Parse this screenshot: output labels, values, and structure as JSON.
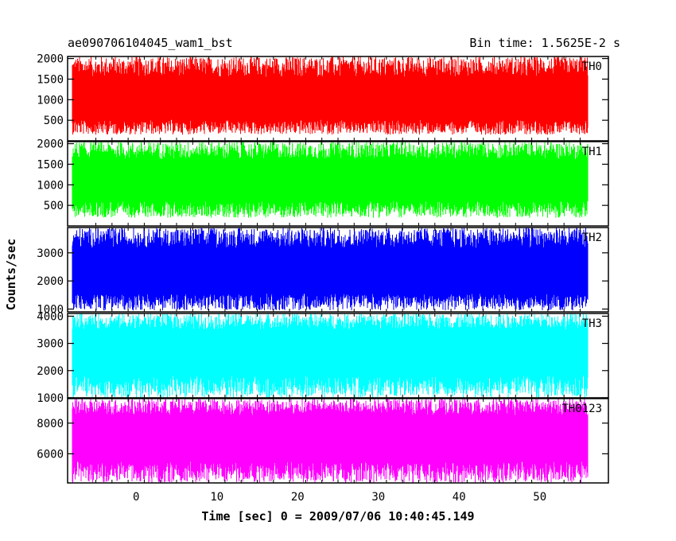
{
  "header": {
    "left": "ae090706104045_wam1_bst",
    "right": "Bin time: 1.5625E-2 s"
  },
  "axis": {
    "ylabel": "Counts/sec",
    "xlabel": "Time [sec] 0 = 2009/07/06 10:40:45.149",
    "xlim": [
      -8.5,
      58.5
    ],
    "xticks": [
      0,
      10,
      20,
      30,
      40,
      50
    ]
  },
  "chart_data": [
    {
      "type": "line",
      "label": "TH0",
      "color": "#ff0000",
      "ylim": [
        0,
        2050
      ],
      "yticks": [
        500,
        1000,
        1500,
        2000
      ],
      "x_range": [
        -8,
        56
      ],
      "bin_time": 0.015625,
      "mean": 950,
      "noise_low": 150,
      "noise_high": 2050
    },
    {
      "type": "line",
      "label": "TH1",
      "color": "#00ff00",
      "ylim": [
        0,
        2050
      ],
      "yticks": [
        500,
        1000,
        1500,
        2000
      ],
      "x_range": [
        -8,
        56
      ],
      "bin_time": 0.015625,
      "mean": 1100,
      "noise_low": 200,
      "noise_high": 2050
    },
    {
      "type": "line",
      "label": "TH2",
      "color": "#0000ff",
      "ylim": [
        900,
        3900
      ],
      "yticks": [
        1000,
        2000,
        3000
      ],
      "x_range": [
        -8,
        56
      ],
      "bin_time": 0.015625,
      "mean": 2300,
      "noise_low": 950,
      "noise_high": 3900
    },
    {
      "type": "line",
      "label": "TH3",
      "color": "#00ffff",
      "ylim": [
        1000,
        4100
      ],
      "yticks": [
        1000,
        2000,
        3000,
        4000
      ],
      "x_range": [
        -8,
        56
      ],
      "bin_time": 0.015625,
      "mean": 2800,
      "noise_low": 1000,
      "noise_high": 4100
    },
    {
      "type": "line",
      "label": "TH0123",
      "color": "#ff00ff",
      "ylim": [
        4100,
        9600
      ],
      "yticks": [
        6000,
        8000
      ],
      "x_range": [
        -8,
        56
      ],
      "bin_time": 0.015625,
      "mean": 7200,
      "noise_low": 4100,
      "noise_high": 9600
    }
  ]
}
